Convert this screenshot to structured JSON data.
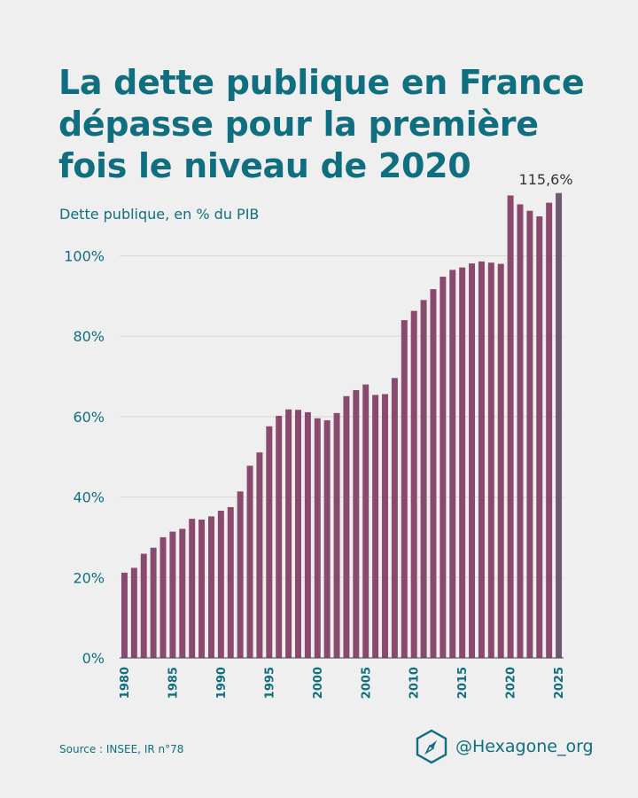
{
  "title_lines": [
    "La dette publique en France",
    "dépasse pour la première",
    "fois le niveau de 2020"
  ],
  "source": "Source : INSEE, IR n°78",
  "brand": {
    "handle": "@Hexagone_org",
    "logo_icon": "hexagon-compass-icon"
  },
  "colors": {
    "title": "#0f6f80",
    "bar": "#8a4a6e",
    "bar_highlight": "#6b5a72",
    "grid": "#d8d8d8",
    "background": "#efefef",
    "annotation": "#333333"
  },
  "chart_data": {
    "type": "bar",
    "title": "La dette publique en France dépasse pour la première fois le niveau de 2020",
    "ylabel": "Dette publique, en % du PIB",
    "xlabel": "",
    "ylim": [
      0,
      118
    ],
    "y_ticks": [
      0,
      20,
      40,
      60,
      80,
      100
    ],
    "y_tick_labels": [
      "0%",
      "20%",
      "40%",
      "60%",
      "80%",
      "100%"
    ],
    "x_tick_labels": [
      "1980",
      "1985",
      "1990",
      "1995",
      "2000",
      "2005",
      "2010",
      "2015",
      "2020",
      "2025"
    ],
    "grid": true,
    "categories": [
      1980,
      1981,
      1982,
      1983,
      1984,
      1985,
      1986,
      1987,
      1988,
      1989,
      1990,
      1991,
      1992,
      1993,
      1994,
      1995,
      1996,
      1997,
      1998,
      1999,
      2000,
      2001,
      2002,
      2003,
      2004,
      2005,
      2006,
      2007,
      2008,
      2009,
      2010,
      2011,
      2012,
      2013,
      2014,
      2015,
      2016,
      2017,
      2018,
      2019,
      2020,
      2021,
      2022,
      2023,
      2024,
      2025
    ],
    "values": [
      21.2,
      22.4,
      25.9,
      27.4,
      30,
      31.4,
      32.1,
      34.6,
      34.4,
      35.2,
      36.6,
      37.5,
      41.4,
      47.8,
      51.1,
      57.6,
      60.2,
      61.8,
      61.7,
      61.1,
      59.6,
      59.1,
      60.9,
      65.1,
      66.6,
      68,
      65.4,
      65.6,
      69.6,
      84,
      86.3,
      89,
      91.7,
      94.8,
      96.5,
      97.1,
      98.1,
      98.6,
      98.3,
      98,
      115,
      112.8,
      111.2,
      109.8,
      113.2,
      115.6
    ],
    "highlight_index": 45,
    "annotation": "115,6%"
  }
}
